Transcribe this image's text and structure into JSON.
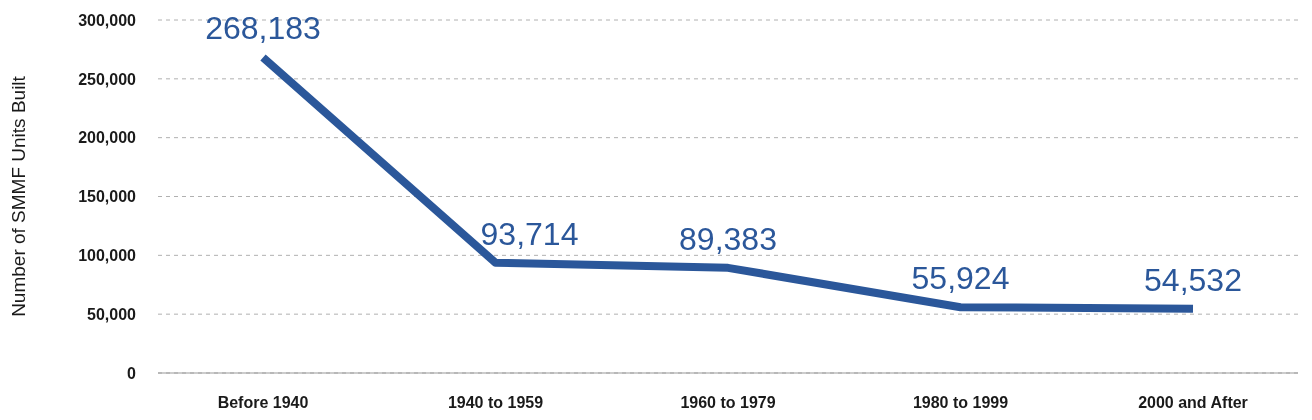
{
  "chart_data": {
    "type": "line",
    "ylabel": "Number of SMMF Units Built",
    "categories": [
      "Before 1940",
      "1940 to 1959",
      "1960 to 1979",
      "1980 to 1999",
      "2000 and After"
    ],
    "series": [
      {
        "color": "#2b579a",
        "values": [
          268183,
          93714,
          89383,
          55924,
          54532
        ],
        "value_labels": [
          "268,183",
          "93,714",
          "89,383",
          "55,924",
          "54,532"
        ]
      }
    ],
    "ylim": [
      0,
      300000
    ],
    "yticks": [
      {
        "value": 0,
        "label": "0"
      },
      {
        "value": 50000,
        "label": "50,000"
      },
      {
        "value": 100000,
        "label": "100,000"
      },
      {
        "value": 150000,
        "label": "150,000"
      },
      {
        "value": 200000,
        "label": "200,000"
      },
      {
        "value": 250000,
        "label": "250,000"
      },
      {
        "value": 300000,
        "label": "300,000"
      }
    ],
    "grid": "y",
    "legend": false,
    "marker": "none",
    "line_style": "solid"
  }
}
